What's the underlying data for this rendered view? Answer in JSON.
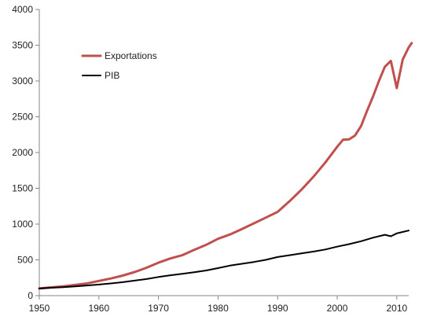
{
  "chart_data": {
    "type": "line",
    "title": "",
    "xlabel": "",
    "ylabel": "",
    "xlim": [
      1950,
      2012
    ],
    "ylim": [
      0,
      4000
    ],
    "x_ticks": [
      1950,
      1960,
      1970,
      1980,
      1990,
      2000,
      2010
    ],
    "y_ticks": [
      0,
      500,
      1000,
      1500,
      2000,
      2500,
      3000,
      3500,
      4000
    ],
    "grid": false,
    "legend_position": "top-left",
    "series": [
      {
        "name": "Exportations",
        "color": "#c0504d",
        "points": [
          [
            1950,
            100
          ],
          [
            1952,
            115
          ],
          [
            1954,
            130
          ],
          [
            1956,
            150
          ],
          [
            1958,
            170
          ],
          [
            1960,
            205
          ],
          [
            1962,
            240
          ],
          [
            1964,
            280
          ],
          [
            1966,
            330
          ],
          [
            1968,
            390
          ],
          [
            1970,
            460
          ],
          [
            1972,
            520
          ],
          [
            1974,
            565
          ],
          [
            1976,
            640
          ],
          [
            1978,
            710
          ],
          [
            1980,
            795
          ],
          [
            1982,
            855
          ],
          [
            1984,
            930
          ],
          [
            1986,
            1010
          ],
          [
            1988,
            1090
          ],
          [
            1990,
            1170
          ],
          [
            1992,
            1320
          ],
          [
            1994,
            1480
          ],
          [
            1996,
            1660
          ],
          [
            1998,
            1860
          ],
          [
            2000,
            2080
          ],
          [
            2001,
            2180
          ],
          [
            2002,
            2185
          ],
          [
            2003,
            2240
          ],
          [
            2004,
            2370
          ],
          [
            2005,
            2580
          ],
          [
            2006,
            2780
          ],
          [
            2007,
            3000
          ],
          [
            2008,
            3200
          ],
          [
            2009,
            3280
          ],
          [
            2010,
            2900
          ],
          [
            2011,
            3300
          ],
          [
            2012,
            3470
          ],
          [
            2012.5,
            3530
          ]
        ]
      },
      {
        "name": "PIB",
        "color": "#000000",
        "points": [
          [
            1950,
            100
          ],
          [
            1952,
            110
          ],
          [
            1954,
            118
          ],
          [
            1956,
            130
          ],
          [
            1958,
            142
          ],
          [
            1960,
            155
          ],
          [
            1962,
            170
          ],
          [
            1964,
            188
          ],
          [
            1966,
            210
          ],
          [
            1968,
            232
          ],
          [
            1970,
            260
          ],
          [
            1972,
            285
          ],
          [
            1974,
            305
          ],
          [
            1976,
            328
          ],
          [
            1978,
            352
          ],
          [
            1980,
            385
          ],
          [
            1982,
            420
          ],
          [
            1984,
            445
          ],
          [
            1986,
            470
          ],
          [
            1988,
            500
          ],
          [
            1990,
            540
          ],
          [
            1992,
            565
          ],
          [
            1994,
            590
          ],
          [
            1996,
            615
          ],
          [
            1998,
            645
          ],
          [
            2000,
            685
          ],
          [
            2002,
            720
          ],
          [
            2004,
            760
          ],
          [
            2006,
            810
          ],
          [
            2008,
            850
          ],
          [
            2009,
            830
          ],
          [
            2010,
            870
          ],
          [
            2012,
            910
          ]
        ]
      }
    ]
  }
}
